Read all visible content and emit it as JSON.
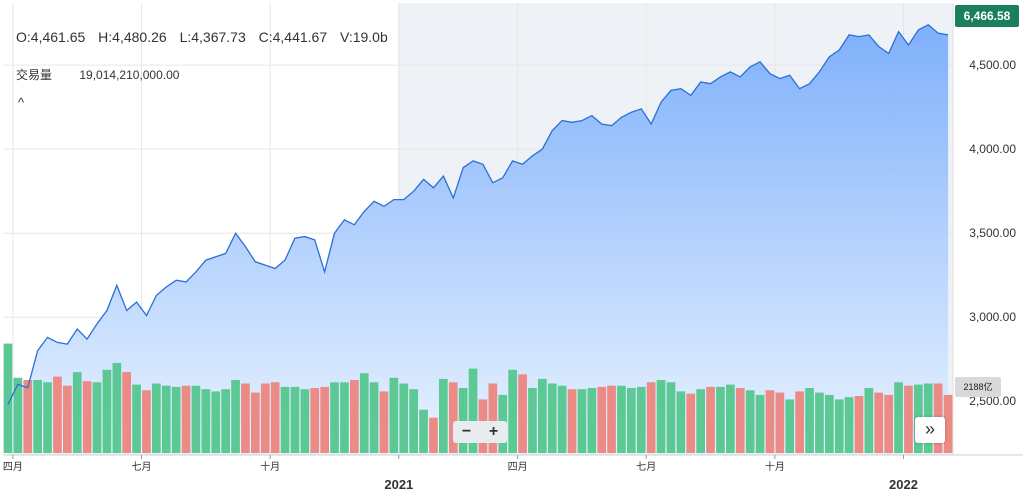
{
  "legend": {
    "open": "O:4,461.65",
    "high": "H:4,480.26",
    "low": "L:4,367.73",
    "close": "C:4,441.67",
    "volume": "V:19.0b",
    "volume_label": "交易量",
    "volume_value": "19,014,210,000.00",
    "collapse_glyph": "^"
  },
  "badges": {
    "last_price": "6,466.58",
    "volume_marker": "2188亿"
  },
  "controls": {
    "zoom_out": "−",
    "zoom_in": "+",
    "scroll_right": "»"
  },
  "colors": {
    "line": "#2b6fd6",
    "area_top": "#7fb0fb",
    "area_bottom": "#e9f3ff",
    "vol_up": "#5cc994",
    "vol_down": "#ec8a85",
    "grid": "#e6e6e6",
    "shade": "#eef1f6",
    "price_badge": "#1a7f5a"
  },
  "chart_data": {
    "type": "area",
    "price_axis_ticks": [
      "4,500.00",
      "4,000.00",
      "3,500.00",
      "3,000.00",
      "2,500.00"
    ],
    "price_axis_values": [
      4500,
      4000,
      3500,
      3000,
      2500
    ],
    "ylim": [
      2180,
      4870
    ],
    "time_axis": [
      {
        "label": "四月",
        "index": 1,
        "major": false
      },
      {
        "label": "七月",
        "index": 14,
        "major": false
      },
      {
        "label": "十月",
        "index": 27,
        "major": false
      },
      {
        "label": "2021",
        "index": 40,
        "major": true
      },
      {
        "label": "四月",
        "index": 52,
        "major": false
      },
      {
        "label": "七月",
        "index": 65,
        "major": false
      },
      {
        "label": "十月",
        "index": 78,
        "major": false
      },
      {
        "label": "2022",
        "index": 91,
        "major": true
      }
    ],
    "close": [
      2480,
      2600,
      2580,
      2800,
      2880,
      2850,
      2840,
      2930,
      2870,
      2960,
      3040,
      3190,
      3040,
      3090,
      3010,
      3130,
      3180,
      3220,
      3210,
      3270,
      3340,
      3360,
      3380,
      3500,
      3420,
      3330,
      3310,
      3290,
      3340,
      3470,
      3480,
      3460,
      3270,
      3500,
      3580,
      3550,
      3630,
      3690,
      3660,
      3700,
      3700,
      3750,
      3820,
      3770,
      3840,
      3710,
      3890,
      3930,
      3910,
      3800,
      3830,
      3930,
      3910,
      3960,
      4000,
      4110,
      4170,
      4160,
      4170,
      4200,
      4150,
      4140,
      4190,
      4220,
      4240,
      4150,
      4280,
      4350,
      4360,
      4320,
      4400,
      4390,
      4430,
      4460,
      4430,
      4490,
      4520,
      4450,
      4420,
      4440,
      4360,
      4390,
      4460,
      4550,
      4590,
      4680,
      4670,
      4680,
      4610,
      4570,
      4700,
      4620,
      4710,
      4740,
      4690,
      4680
    ],
    "volume": [
      96,
      66,
      64,
      64,
      62,
      67,
      59,
      71,
      63,
      62,
      73,
      79,
      71,
      60,
      55,
      61,
      59,
      58,
      59,
      59,
      56,
      54,
      56,
      64,
      61,
      53,
      61,
      62,
      58,
      58,
      56,
      57,
      58,
      62,
      62,
      64,
      70,
      62,
      54,
      66,
      61,
      56,
      38,
      31,
      65,
      62,
      57,
      74,
      47,
      61,
      51,
      73,
      69,
      57,
      65,
      61,
      59,
      56,
      56,
      57,
      58,
      59,
      59,
      57,
      58,
      62,
      64,
      62,
      54,
      52,
      56,
      58,
      58,
      60,
      57,
      55,
      51,
      55,
      53,
      47,
      54,
      57,
      53,
      51,
      47,
      49,
      50,
      57,
      53,
      51,
      62,
      59,
      60,
      61,
      61,
      51
    ]
  }
}
